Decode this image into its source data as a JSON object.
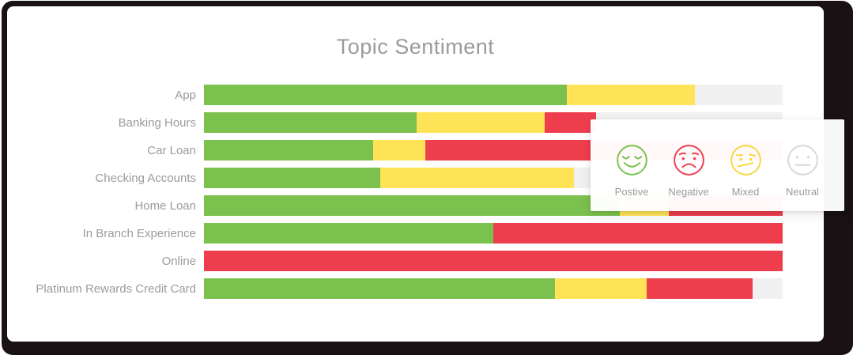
{
  "title": "Topic Sentiment",
  "colors": {
    "positive": "#7BC14D",
    "mixed": "#FFE356",
    "negative": "#EE3E4E",
    "neutral": "#F0F0F0",
    "legend_mixed_stroke": "#F5D840",
    "legend_neutral_stroke": "#D8D8D8",
    "text_gray": "#9b9b9b",
    "frame_dark": "#191114"
  },
  "legend": {
    "items": [
      {
        "label": "Postive",
        "sentiment": "positive",
        "stroke": "#7BC14D"
      },
      {
        "label": "Negative",
        "sentiment": "negative",
        "stroke": "#EE3E4E"
      },
      {
        "label": "Mixed",
        "sentiment": "mixed",
        "stroke": "#F5D840"
      },
      {
        "label": "Neutral",
        "sentiment": "neutral",
        "stroke": "#D8D8D8"
      }
    ]
  },
  "chart_data": {
    "type": "bar",
    "orientation": "horizontal",
    "stacked": true,
    "title": "Topic Sentiment",
    "xlabel": "",
    "ylabel": "",
    "x_range_percent": [
      0,
      100
    ],
    "grid": false,
    "legend_position": "overlay-right",
    "stack_order": [
      "Positive",
      "Mixed",
      "Negative",
      "Neutral"
    ],
    "categories": [
      "App",
      "Banking Hours",
      "Car Loan",
      "Checking Accounts",
      "Home Loan",
      "In Branch Experience",
      "Online",
      "Platinum Rewards Credit Card"
    ],
    "series": [
      {
        "name": "Positive",
        "sentiment": "positive",
        "color": "#7BC14D",
        "values": [
          62.7,
          36.8,
          29.2,
          30.4,
          71.9,
          50.0,
          0,
          60.6
        ]
      },
      {
        "name": "Mixed",
        "sentiment": "mixed",
        "color": "#FFE356",
        "values": [
          22.1,
          22.1,
          9.0,
          33.5,
          8.4,
          0,
          0,
          15.9
        ]
      },
      {
        "name": "Negative",
        "sentiment": "negative",
        "color": "#EE3E4E",
        "values": [
          0,
          8.9,
          61.8,
          0,
          19.7,
          50.0,
          100,
          18.3
        ]
      },
      {
        "name": "Neutral",
        "sentiment": "neutral",
        "color": "#F0F0F0",
        "values": [
          15.2,
          32.2,
          0,
          36.1,
          0,
          0,
          0,
          5.2
        ]
      }
    ]
  }
}
